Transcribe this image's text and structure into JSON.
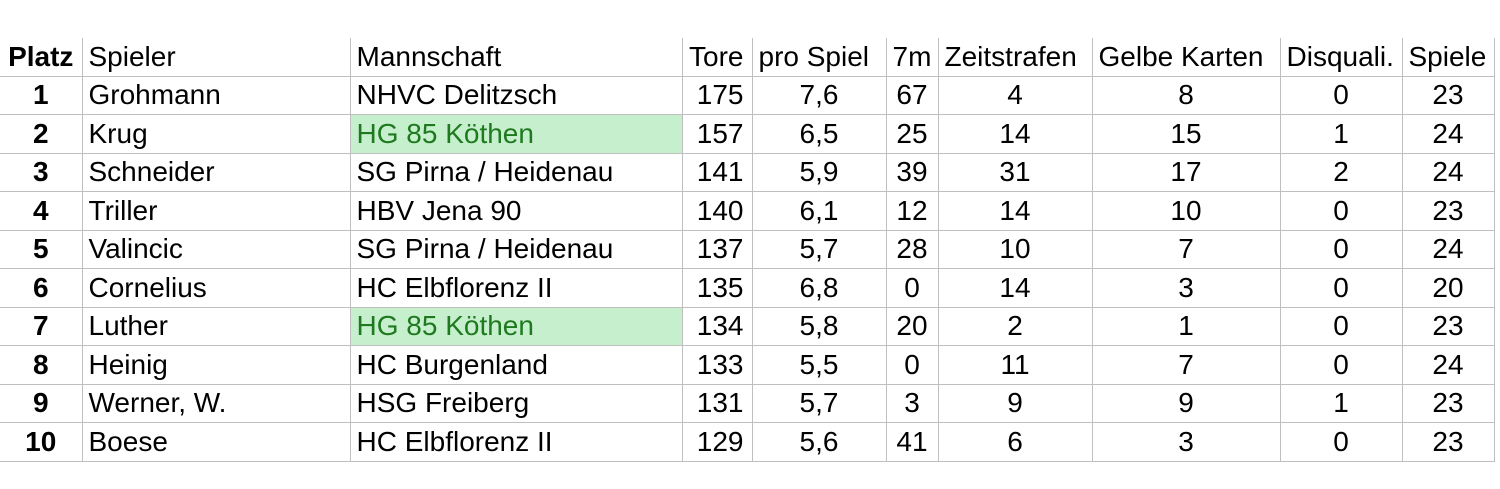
{
  "headers": {
    "platz": "Platz",
    "spieler": "Spieler",
    "mannschaft": "Mannschaft",
    "tore": "Tore",
    "pro_spiel": "pro Spiel",
    "sieben_m": "7m",
    "zeitstrafen": "Zeitstrafen",
    "gelbe_karten": "Gelbe Karten",
    "disquali": "Disquali.",
    "spiele": "Spiele"
  },
  "rows": [
    {
      "platz": "1",
      "spieler": "Grohmann",
      "mannschaft": "NHVC Delitzsch",
      "tore": "175",
      "pro_spiel": "7,6",
      "sieben_m": "67",
      "zeitstrafen": "4",
      "gelbe_karten": "8",
      "disquali": "0",
      "spiele": "23",
      "highlight": false
    },
    {
      "platz": "2",
      "spieler": "Krug",
      "mannschaft": "HG 85 Köthen",
      "tore": "157",
      "pro_spiel": "6,5",
      "sieben_m": "25",
      "zeitstrafen": "14",
      "gelbe_karten": "15",
      "disquali": "1",
      "spiele": "24",
      "highlight": true
    },
    {
      "platz": "3",
      "spieler": "Schneider",
      "mannschaft": "SG Pirna / Heidenau",
      "tore": "141",
      "pro_spiel": "5,9",
      "sieben_m": "39",
      "zeitstrafen": "31",
      "gelbe_karten": "17",
      "disquali": "2",
      "spiele": "24",
      "highlight": false
    },
    {
      "platz": "4",
      "spieler": "Triller",
      "mannschaft": "HBV Jena 90",
      "tore": "140",
      "pro_spiel": "6,1",
      "sieben_m": "12",
      "zeitstrafen": "14",
      "gelbe_karten": "10",
      "disquali": "0",
      "spiele": "23",
      "highlight": false
    },
    {
      "platz": "5",
      "spieler": "Valincic",
      "mannschaft": "SG Pirna / Heidenau",
      "tore": "137",
      "pro_spiel": "5,7",
      "sieben_m": "28",
      "zeitstrafen": "10",
      "gelbe_karten": "7",
      "disquali": "0",
      "spiele": "24",
      "highlight": false
    },
    {
      "platz": "6",
      "spieler": "Cornelius",
      "mannschaft": "HC Elbflorenz II",
      "tore": "135",
      "pro_spiel": "6,8",
      "sieben_m": "0",
      "zeitstrafen": "14",
      "gelbe_karten": "3",
      "disquali": "0",
      "spiele": "20",
      "highlight": false
    },
    {
      "platz": "7",
      "spieler": "Luther",
      "mannschaft": "HG 85 Köthen",
      "tore": "134",
      "pro_spiel": "5,8",
      "sieben_m": "20",
      "zeitstrafen": "2",
      "gelbe_karten": "1",
      "disquali": "0",
      "spiele": "23",
      "highlight": true
    },
    {
      "platz": "8",
      "spieler": "Heinig",
      "mannschaft": "HC Burgenland",
      "tore": "133",
      "pro_spiel": "5,5",
      "sieben_m": "0",
      "zeitstrafen": "11",
      "gelbe_karten": "7",
      "disquali": "0",
      "spiele": "24",
      "highlight": false
    },
    {
      "platz": "9",
      "spieler": "Werner, W.",
      "mannschaft": "HSG Freiberg",
      "tore": "131",
      "pro_spiel": "5,7",
      "sieben_m": "3",
      "zeitstrafen": "9",
      "gelbe_karten": "9",
      "disquali": "1",
      "spiele": "23",
      "highlight": false
    },
    {
      "platz": "10",
      "spieler": "Boese",
      "mannschaft": "HC Elbflorenz II",
      "tore": "129",
      "pro_spiel": "5,6",
      "sieben_m": "41",
      "zeitstrafen": "6",
      "gelbe_karten": "3",
      "disquali": "0",
      "spiele": "23",
      "highlight": false
    }
  ],
  "colors": {
    "highlight_fill": "#c6efce",
    "highlight_text": "#1f7a1f",
    "grid": "#bfbfbf"
  }
}
